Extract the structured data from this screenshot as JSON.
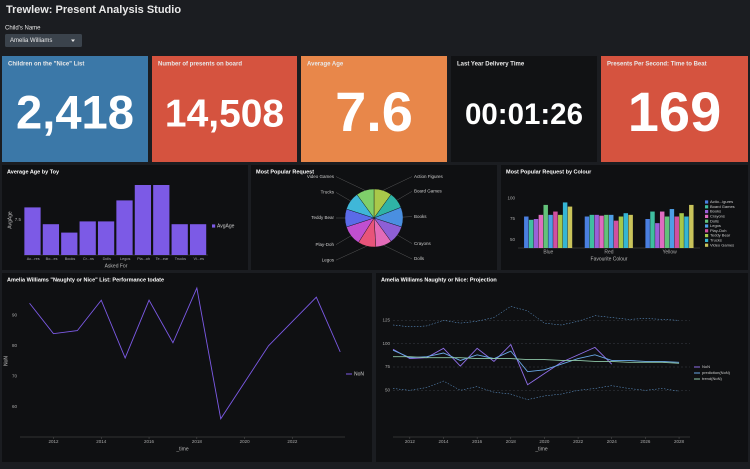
{
  "header": {
    "title": "Trewlew: Present Analysis Studio"
  },
  "filter": {
    "label": "Child's Name",
    "value": "Amelia Williams"
  },
  "kpis": [
    {
      "title": "Children on the \"Nice\" List",
      "value": "2,418",
      "color": "#3b78a8"
    },
    {
      "title": "Number of presents on board",
      "value": "14,508",
      "color": "#d5533f"
    },
    {
      "title": "Average Age",
      "value": "7.6",
      "color": "#e8874a"
    },
    {
      "title": "Last Year Delivery Time",
      "value": "00:01:26",
      "color": "#111214"
    },
    {
      "title": "Presents Per Second: Time to Beat",
      "value": "169",
      "color": "#d5533f"
    }
  ],
  "chart_data": [
    {
      "type": "bar",
      "title": "Average Age by Toy",
      "xlabel": "Asked For",
      "ylabel": "AvgAge",
      "categories": [
        "Ac...res",
        "Bo...es",
        "Books",
        "Cr...ns",
        "Dolls",
        "Legos",
        "Pla...oh",
        "Te...ear",
        "Trucks",
        "Vi...es"
      ],
      "series": [
        {
          "name": "AvgAge",
          "color": "#7c5ae6",
          "values": [
            8.4,
            7.2,
            6.6,
            7.4,
            7.4,
            8.9,
            10,
            10,
            7.2,
            7.2
          ]
        }
      ],
      "ylim": [
        5,
        10
      ],
      "yticks": [
        7.5
      ],
      "grid": false
    },
    {
      "type": "pie",
      "title": "Most Popular Request",
      "categories": [
        "Action Figures",
        "Board Games",
        "Books",
        "Crayons",
        "Dolls",
        "Legos",
        "Play-Doh",
        "Teddy Bear",
        "Trucks",
        "Video Games"
      ],
      "values": [
        10,
        9,
        11,
        10,
        9,
        10,
        11,
        10,
        10,
        10
      ],
      "colors": [
        "#a9c84a",
        "#2fb3a6",
        "#4a8fe0",
        "#8d5fd6",
        "#e36bb8",
        "#e8547a",
        "#c04fd0",
        "#5b6be8",
        "#3fb7d8",
        "#7fcf6a"
      ]
    },
    {
      "type": "bar",
      "title": "Most Popular Request by Colour",
      "xlabel": "Favourite Colour",
      "categories": [
        "Blue",
        "Red",
        "Yellow"
      ],
      "series": [
        {
          "name": "Actio...igures",
          "color": "#4a7fe0",
          "values": [
            78,
            78,
            75
          ]
        },
        {
          "name": "Board Games",
          "color": "#3fbfa0",
          "values": [
            74,
            80,
            84
          ]
        },
        {
          "name": "Books",
          "color": "#9a5fd8",
          "values": [
            75,
            80,
            70
          ]
        },
        {
          "name": "Crayons",
          "color": "#e06cc0",
          "values": [
            80,
            79,
            84
          ]
        },
        {
          "name": "Dolls",
          "color": "#63c27a",
          "values": [
            92,
            80,
            78
          ]
        },
        {
          "name": "Legos",
          "color": "#4e9ee6",
          "values": [
            80,
            80,
            87
          ]
        },
        {
          "name": "Play-Doh",
          "color": "#d14fa0",
          "values": [
            84,
            73,
            78
          ]
        },
        {
          "name": "Teddy Bear",
          "color": "#a6c84a",
          "values": [
            80,
            78,
            82
          ]
        },
        {
          "name": "Trucks",
          "color": "#35b5d4",
          "values": [
            95,
            82,
            78
          ]
        },
        {
          "name": "Video Games",
          "color": "#c9c35a",
          "values": [
            90,
            80,
            92
          ]
        }
      ],
      "ylim": [
        40,
        110
      ],
      "yticks": [
        50,
        75,
        100
      ],
      "grid": false
    },
    {
      "type": "line",
      "title": "Amelia Williams \"Naughty or Nice\" List: Performance todate",
      "xlabel": "_time",
      "ylabel": "NoN",
      "x": [
        2011,
        2012,
        2013,
        2014,
        2015,
        2016,
        2017,
        2018,
        2019,
        2020,
        2021,
        2022,
        2023,
        2024
      ],
      "series": [
        {
          "name": "NoN",
          "color": "#7c5ae6",
          "values": [
            94,
            84,
            85,
            95,
            76,
            95,
            81,
            99,
            56,
            68,
            80,
            88,
            96,
            78
          ]
        }
      ],
      "xlim": [
        2010.6,
        2024.2
      ],
      "xticks": [
        2012,
        2014,
        2016,
        2018,
        2020,
        2022
      ],
      "ylim": [
        50,
        100
      ],
      "yticks": [
        60,
        70,
        80,
        90
      ],
      "grid": false
    },
    {
      "type": "line",
      "title": "Amelia Williams Naughty or Nice: Projection",
      "xlabel": "_time",
      "x": [
        2011,
        2012,
        2013,
        2014,
        2015,
        2016,
        2017,
        2018,
        2019,
        2020,
        2021,
        2022,
        2023,
        2024,
        2025,
        2026,
        2027,
        2028
      ],
      "series": [
        {
          "color": "#6aa8e6",
          "dashed": true,
          "values": [
            120,
            118,
            119,
            125,
            122,
            124,
            128,
            140,
            135,
            122,
            120,
            124,
            130,
            128,
            126,
            127,
            126,
            125
          ]
        },
        {
          "color": "#6aa8e6",
          "dashed": true,
          "values": [
            52,
            50,
            53,
            60,
            50,
            54,
            48,
            46,
            40,
            44,
            46,
            50,
            52,
            55,
            52,
            50,
            52,
            49
          ]
        },
        {
          "name": "NoN",
          "color": "#8f6ee8",
          "values": [
            94,
            84,
            85,
            95,
            76,
            95,
            81,
            99,
            56,
            68,
            80,
            88,
            96,
            78,
            null,
            null,
            null,
            null
          ]
        },
        {
          "name": "prediction(NoN)",
          "color": "#6aa8e6",
          "values": [
            93,
            85,
            86,
            90,
            82,
            88,
            84,
            92,
            70,
            72,
            78,
            84,
            88,
            82,
            82,
            81,
            81,
            80
          ]
        },
        {
          "name": "trend(NoN)",
          "color": "#8fc7a8",
          "values": [
            86,
            86,
            85,
            85,
            85,
            84,
            84,
            84,
            83,
            83,
            82,
            82,
            81,
            81,
            80,
            80,
            80,
            79
          ]
        }
      ],
      "xlim": [
        2011,
        2028.65
      ],
      "xticks": [
        2012,
        2014,
        2016,
        2018,
        2020,
        2022,
        2024,
        2026,
        2028
      ],
      "ylim": [
        0,
        150
      ],
      "yticks": [
        50,
        75,
        100,
        125
      ],
      "grid": true
    }
  ]
}
